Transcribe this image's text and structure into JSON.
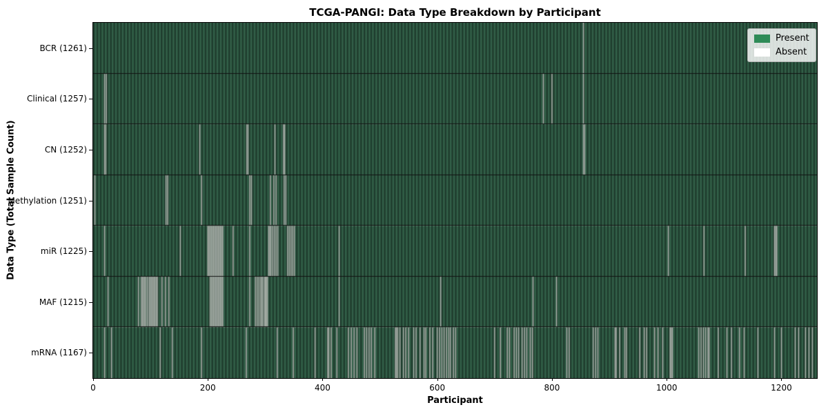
{
  "chart_data": {
    "type": "heatmap",
    "title": "TCGA-PANGI: Data Type Breakdown by Participant",
    "xlabel": "Participant",
    "ylabel": "Data Type (Total Sample Count)",
    "x_ticks": [
      0,
      200,
      400,
      600,
      800,
      1000,
      1200
    ],
    "xlim": [
      0,
      1262
    ],
    "n_participants": 1262,
    "grid": false,
    "legend_position": "upper right",
    "legend": [
      {
        "label": "Present",
        "color": "#2e8b57"
      },
      {
        "label": "Absent",
        "color": "#ffffff"
      }
    ],
    "colors": {
      "bar_light": "#336049",
      "bar_dark": "#1e3c2d",
      "absent_edge": "#6f7b73",
      "absent_core": "#b9c0ba",
      "row_separator": "#111111",
      "axis": "#000000"
    },
    "rows": [
      {
        "label": "BCR (1261)",
        "total": 1261,
        "absent": [
          855
        ]
      },
      {
        "label": "Clinical (1257)",
        "total": 1257,
        "absent": [
          20,
          23,
          785,
          800,
          855
        ]
      },
      {
        "label": "CN (1252)",
        "total": 1252,
        "absent": [
          20,
          22,
          186,
          268,
          270,
          317,
          332,
          334,
          855,
          857
        ]
      },
      {
        "label": "Methylation (1251)",
        "total": 1251,
        "absent": [
          3,
          127,
          130,
          189,
          273,
          276,
          309,
          315,
          319,
          333,
          336
        ]
      },
      {
        "label": "miR (1225)",
        "total": 1225,
        "absent": [
          20,
          152,
          200,
          202,
          204,
          206,
          208,
          210,
          212,
          214,
          216,
          218,
          220,
          222,
          224,
          226,
          244,
          273,
          306,
          308,
          310,
          313,
          316,
          319,
          322,
          339,
          342,
          345,
          348,
          351,
          429,
          1003,
          1065,
          1137,
          1188,
          1190,
          1192
        ]
      },
      {
        "label": "MAF (1215)",
        "total": 1215,
        "absent": [
          26,
          79,
          84,
          86,
          88,
          90,
          92,
          95,
          98,
          100,
          102,
          104,
          106,
          108,
          110,
          112,
          120,
          126,
          132,
          204,
          206,
          208,
          210,
          212,
          214,
          216,
          218,
          220,
          222,
          224,
          226,
          273,
          283,
          286,
          289,
          292,
          294,
          295,
          298,
          300,
          301,
          302,
          304,
          429,
          606,
          767,
          808
        ]
      },
      {
        "label": "mRNA (1167)",
        "total": 1167,
        "absent": [
          20,
          32,
          117,
          138,
          189,
          267,
          321,
          349,
          387,
          409,
          411,
          415,
          425,
          445,
          450,
          455,
          460,
          473,
          477,
          481,
          485,
          491,
          527,
          529,
          531,
          535,
          541,
          545,
          550,
          559,
          563,
          570,
          577,
          580,
          587,
          592,
          600,
          604,
          608,
          612,
          616,
          620,
          623,
          628,
          632,
          700,
          710,
          722,
          726,
          734,
          738,
          742,
          748,
          752,
          756,
          762,
          766,
          826,
          830,
          872,
          876,
          880,
          910,
          912,
          918,
          927,
          930,
          953,
          961,
          965,
          979,
          985,
          993,
          1006,
          1008,
          1010,
          1056,
          1060,
          1064,
          1068,
          1072,
          1074,
          1090,
          1105,
          1113,
          1127,
          1135,
          1159,
          1188,
          1200,
          1224,
          1230,
          1242,
          1248,
          1254
        ]
      }
    ]
  }
}
